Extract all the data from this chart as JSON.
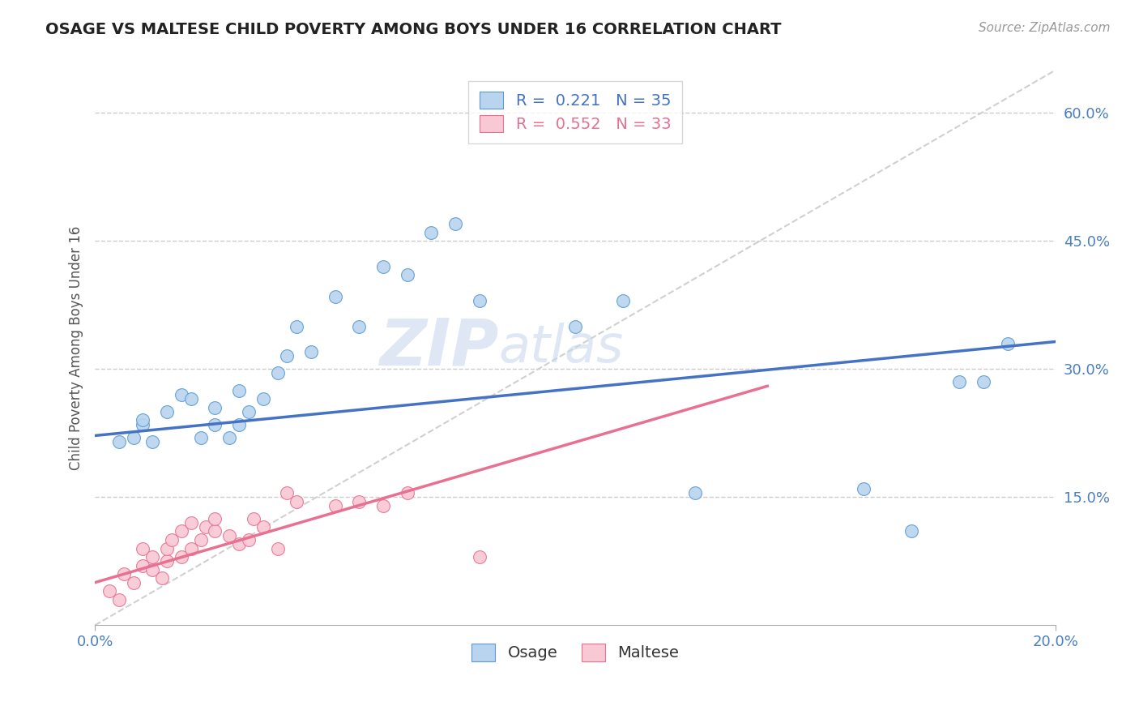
{
  "title": "OSAGE VS MALTESE CHILD POVERTY AMONG BOYS UNDER 16 CORRELATION CHART",
  "source": "Source: ZipAtlas.com",
  "xlim": [
    0.0,
    0.2
  ],
  "ylim": [
    0.0,
    0.65
  ],
  "osage_R": 0.221,
  "osage_N": 35,
  "maltese_R": 0.552,
  "maltese_N": 33,
  "osage_color": "#b8d4ee",
  "osage_edge_color": "#5b9bd5",
  "maltese_color": "#f8c8d4",
  "maltese_edge_color": "#e87090",
  "ref_line_color": "#d0d0d0",
  "background_color": "#ffffff",
  "osage_line_color": "#4472c4",
  "maltese_line_color": "#e87090",
  "osage_x": [
    0.005,
    0.008,
    0.01,
    0.01,
    0.012,
    0.015,
    0.018,
    0.02,
    0.022,
    0.025,
    0.025,
    0.028,
    0.03,
    0.03,
    0.032,
    0.035,
    0.038,
    0.04,
    0.042,
    0.045,
    0.05,
    0.055,
    0.06,
    0.065,
    0.07,
    0.075,
    0.08,
    0.1,
    0.11,
    0.125,
    0.16,
    0.17,
    0.18,
    0.185,
    0.19
  ],
  "osage_y": [
    0.215,
    0.22,
    0.235,
    0.24,
    0.215,
    0.25,
    0.27,
    0.265,
    0.22,
    0.235,
    0.255,
    0.22,
    0.235,
    0.275,
    0.25,
    0.265,
    0.295,
    0.315,
    0.35,
    0.32,
    0.385,
    0.35,
    0.42,
    0.41,
    0.46,
    0.47,
    0.38,
    0.35,
    0.38,
    0.155,
    0.16,
    0.11,
    0.285,
    0.285,
    0.33
  ],
  "maltese_x": [
    0.003,
    0.005,
    0.006,
    0.008,
    0.01,
    0.01,
    0.012,
    0.012,
    0.014,
    0.015,
    0.015,
    0.016,
    0.018,
    0.018,
    0.02,
    0.02,
    0.022,
    0.023,
    0.025,
    0.025,
    0.028,
    0.03,
    0.032,
    0.033,
    0.035,
    0.038,
    0.04,
    0.042,
    0.05,
    0.055,
    0.06,
    0.065,
    0.08
  ],
  "maltese_y": [
    0.04,
    0.03,
    0.06,
    0.05,
    0.07,
    0.09,
    0.065,
    0.08,
    0.055,
    0.075,
    0.09,
    0.1,
    0.08,
    0.11,
    0.09,
    0.12,
    0.1,
    0.115,
    0.11,
    0.125,
    0.105,
    0.095,
    0.1,
    0.125,
    0.115,
    0.09,
    0.155,
    0.145,
    0.14,
    0.145,
    0.14,
    0.155,
    0.08
  ],
  "watermark_zip": "ZIP",
  "watermark_atlas": "atlas",
  "ylabel": "Child Poverty Among Boys Under 16"
}
